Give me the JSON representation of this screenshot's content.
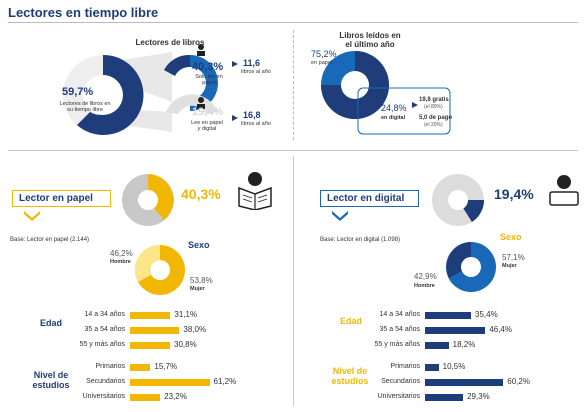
{
  "title": "Lectores en tiempo libre",
  "colors": {
    "navy": "#1f3d7a",
    "blue": "#1a68b8",
    "gold": "#f2b705",
    "gray": "#c8c8c8",
    "lightgray": "#dcdcdc"
  },
  "top_left": {
    "subtitle": "Lectores de libros",
    "main_pct": "59,7%",
    "main_label": "Lectores de libros en su tiempo libre",
    "paper_pct": "40,3%",
    "paper_label": "Solo lee en papel",
    "paper_books": "11,6",
    "paper_books_unit": "libros al año",
    "both_pct": "19,4%",
    "both_label": "Lee en papel y digital",
    "both_books": "16,8",
    "both_books_unit": "libros al año"
  },
  "top_right": {
    "subtitle": "Libros leídos en el último año",
    "paper_pct": "75,2%",
    "paper_label": "en papel",
    "digital_pct": "24,8%",
    "digital_label": "en digital",
    "free_val": "19,8 gratis",
    "free_note": "(el 80%)",
    "paid_val": "5,0 de pago",
    "paid_note": "(el 20%)"
  },
  "left_panel": {
    "box_label": "Lector en papel",
    "pct": "40,3%",
    "base": "Base: Lector en papel (2.144)",
    "sexo_title": "Sexo",
    "hombre_pct": "46,2%",
    "hombre_label": "Hombre",
    "mujer_pct": "53,8%",
    "mujer_label": "Mujer",
    "edad_title": "Edad",
    "nivel_title": "Nivel de estudios"
  },
  "right_panel": {
    "box_label": "Lector en digital",
    "pct": "19,4%",
    "base": "Base: Lector en digital (1.098)",
    "sexo_title": "Sexo",
    "hombre_pct": "42,9%",
    "hombre_label": "Hombre",
    "mujer_pct": "57,1%",
    "mujer_label": "Mujer",
    "edad_title": "Edad",
    "nivel_title": "Nivel de estudios"
  },
  "chart_data": [
    {
      "type": "pie",
      "title": "Lectores de libros",
      "slices": [
        {
          "label": "Lectores de libros en su tiempo libre",
          "value": 59.7
        },
        {
          "label": "",
          "value": 40.3
        }
      ]
    },
    {
      "type": "pie",
      "title": "Libros leídos en el último año",
      "slices": [
        {
          "label": "en papel",
          "value": 75.2
        },
        {
          "label": "en digital",
          "value": 24.8
        }
      ]
    },
    {
      "type": "bar",
      "group": "Edad",
      "panel": "Lector en papel",
      "categories": [
        "14 a 34 años",
        "35 a 54 años",
        "55 y más años"
      ],
      "values": [
        31.1,
        38.0,
        30.8
      ],
      "labels": [
        "31,1%",
        "38,0%",
        "30,8%"
      ]
    },
    {
      "type": "bar",
      "group": "Nivel de estudios",
      "panel": "Lector en papel",
      "categories": [
        "Primarios",
        "Secundarios",
        "Universitarios"
      ],
      "values": [
        15.7,
        61.2,
        23.2
      ],
      "labels": [
        "15,7%",
        "61,2%",
        "23,2%"
      ]
    },
    {
      "type": "bar",
      "group": "Edad",
      "panel": "Lector en digital",
      "categories": [
        "14 a 34 años",
        "35 a 54 años",
        "55 y más años"
      ],
      "values": [
        35.4,
        46.4,
        18.2
      ],
      "labels": [
        "35,4%",
        "46,4%",
        "18,2%"
      ]
    },
    {
      "type": "bar",
      "group": "Nivel de estudios",
      "panel": "Lector en digital",
      "categories": [
        "Primarios",
        "Secundarios",
        "Universitarios"
      ],
      "values": [
        10.5,
        60.2,
        29.3
      ],
      "labels": [
        "10,5%",
        "60,2%",
        "29,3%"
      ]
    }
  ]
}
